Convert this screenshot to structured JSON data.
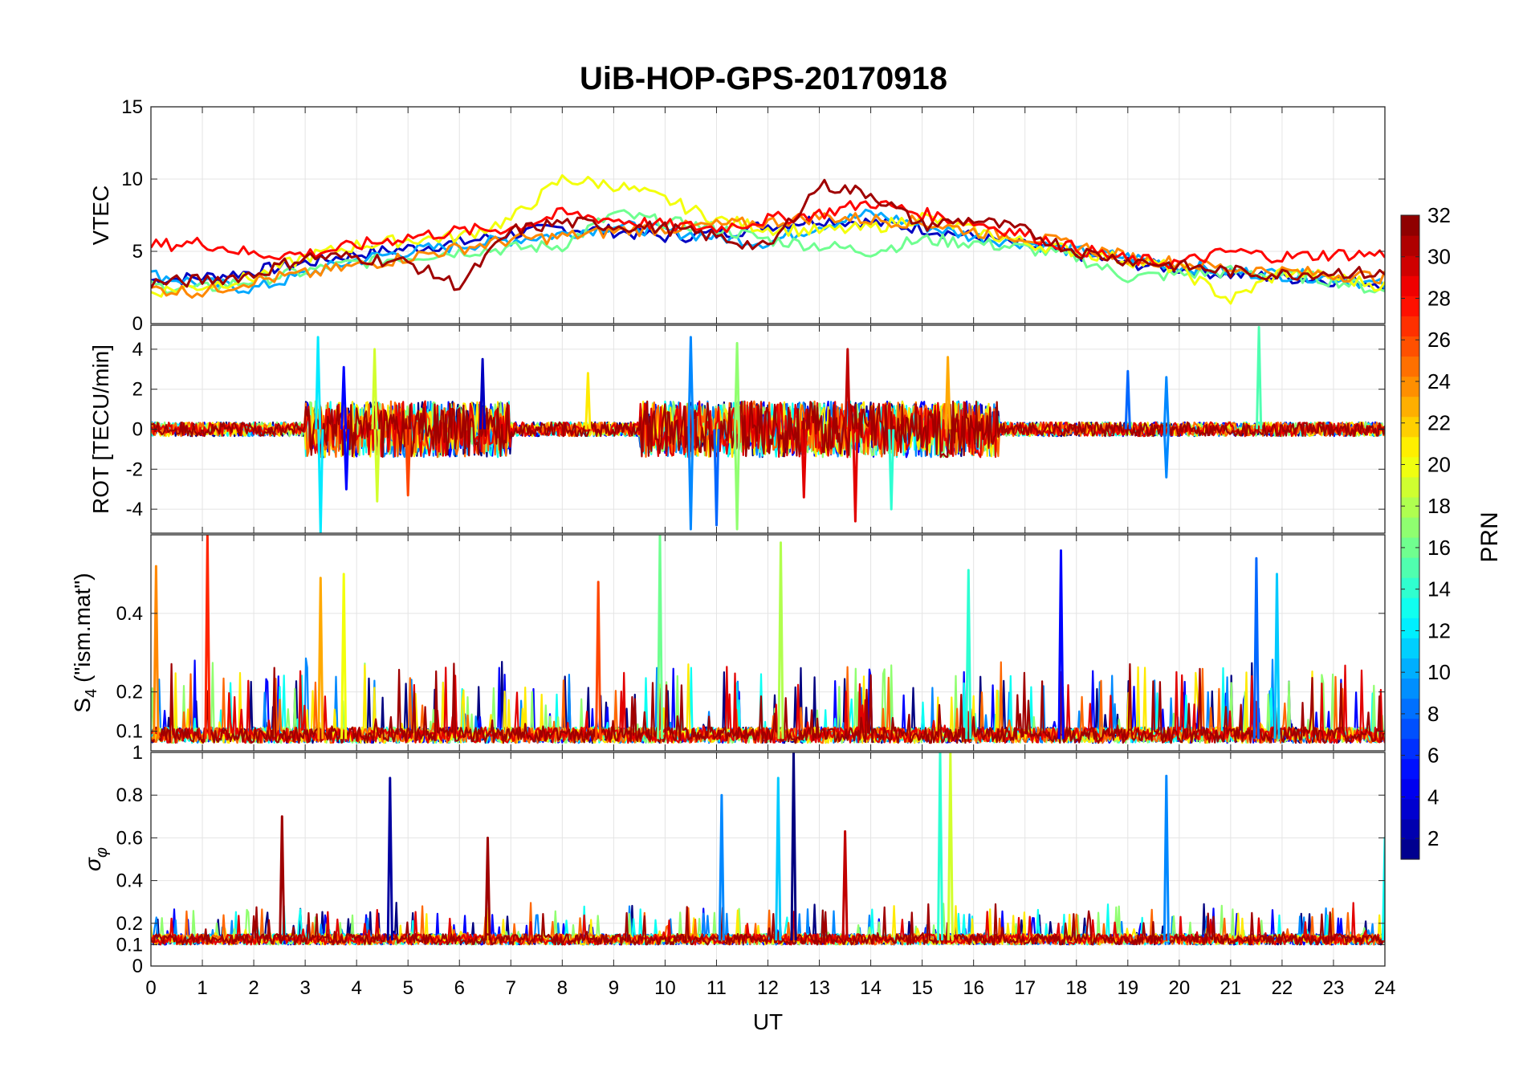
{
  "chart_data": {
    "type": "line",
    "title": "UiB-HOP-GPS-20170918",
    "xlabel": "UT",
    "xlim": [
      0,
      24
    ],
    "x_ticks": [
      0,
      1,
      2,
      3,
      4,
      5,
      6,
      7,
      8,
      9,
      10,
      11,
      12,
      13,
      14,
      15,
      16,
      17,
      18,
      19,
      20,
      21,
      22,
      23,
      24
    ],
    "grid": true,
    "colorbar": {
      "label": "PRN",
      "range": [
        1,
        32
      ],
      "ticks": [
        2,
        4,
        6,
        8,
        10,
        12,
        14,
        16,
        18,
        20,
        22,
        24,
        26,
        28,
        30,
        32
      ],
      "colormap": "jet"
    },
    "panels": [
      {
        "id": "vtec",
        "ylabel": "VTEC",
        "ylim": [
          0,
          15
        ],
        "yticks": [
          0,
          5,
          10,
          15
        ],
        "ytick_labels": [
          "0",
          "5",
          "10",
          "15"
        ],
        "series": [
          {
            "prn": 3,
            "x": [
              0,
              1,
              2,
              3,
              4,
              5,
              6,
              7,
              8,
              9,
              10,
              11,
              12,
              13,
              14,
              15,
              16,
              17,
              18,
              19,
              20,
              21,
              22,
              23,
              24
            ],
            "y": [
              3.0,
              3.2,
              3.6,
              4.2,
              4.8,
              5.2,
              5.6,
              6.2,
              6.6,
              6.4,
              6.0,
              6.2,
              6.8,
              7.2,
              7.0,
              6.6,
              6.0,
              5.4,
              4.8,
              4.2,
              3.8,
              3.4,
              3.2,
              3.0,
              2.8
            ]
          },
          {
            "prn": 10,
            "x": [
              0,
              1,
              2,
              3,
              4,
              5,
              6,
              7,
              8,
              9,
              10,
              11,
              12,
              13,
              14,
              15,
              16,
              17,
              18,
              19,
              20,
              21,
              22,
              23,
              24
            ],
            "y": [
              3.4,
              2.8,
              2.4,
              3.4,
              4.4,
              5.0,
              5.4,
              5.8,
              6.2,
              6.8,
              6.4,
              6.0,
              5.6,
              6.8,
              7.6,
              6.8,
              6.0,
              5.6,
              5.0,
              4.6,
              4.0,
              3.6,
              3.4,
              3.2,
              2.6
            ]
          },
          {
            "prn": 16,
            "x": [
              0,
              1,
              2,
              3,
              4,
              5,
              6,
              7,
              8,
              9,
              10,
              11,
              12,
              13,
              14,
              15,
              16,
              17,
              18,
              19,
              20,
              21,
              22,
              23,
              24
            ],
            "y": [
              2.6,
              2.4,
              3.0,
              3.6,
              4.2,
              4.6,
              5.0,
              5.2,
              5.4,
              7.6,
              7.0,
              6.6,
              5.8,
              5.4,
              5.0,
              5.8,
              5.6,
              5.2,
              4.6,
              3.2,
              3.4,
              3.6,
              3.4,
              3.0,
              2.2
            ]
          },
          {
            "prn": 20,
            "x": [
              0,
              1,
              2,
              3,
              4,
              5,
              6,
              7,
              8,
              9,
              10,
              11,
              12,
              13,
              14,
              15,
              16,
              17,
              18,
              19,
              20,
              21,
              22,
              23,
              24
            ],
            "y": [
              2.2,
              2.6,
              3.2,
              4.6,
              5.4,
              5.8,
              6.0,
              7.2,
              10.0,
              9.6,
              8.6,
              7.2,
              6.6,
              6.4,
              6.6,
              7.4,
              6.4,
              5.6,
              5.0,
              4.4,
              3.8,
              1.6,
              3.6,
              3.2,
              2.6
            ]
          },
          {
            "prn": 24,
            "x": [
              0,
              1,
              2,
              3,
              4,
              5,
              6,
              7,
              8,
              9,
              10,
              11,
              12,
              13,
              14,
              15,
              16,
              17,
              18,
              19,
              20,
              21,
              22,
              23,
              24
            ],
            "y": [
              2.4,
              2.2,
              3.0,
              3.4,
              4.0,
              4.6,
              5.2,
              5.8,
              6.0,
              6.4,
              6.6,
              6.8,
              7.0,
              7.4,
              7.2,
              7.0,
              6.4,
              6.0,
              5.4,
              4.6,
              4.2,
              3.8,
              3.6,
              3.4,
              3.2
            ]
          },
          {
            "prn": 28,
            "x": [
              0,
              1,
              2,
              3,
              4,
              5,
              6,
              7,
              8,
              9,
              10,
              11,
              12,
              13,
              14,
              15,
              16,
              17,
              18,
              19,
              20,
              21,
              22,
              23,
              24
            ],
            "y": [
              5.4,
              5.6,
              4.8,
              4.8,
              5.4,
              6.0,
              6.4,
              6.6,
              7.6,
              7.2,
              6.8,
              6.6,
              7.2,
              7.6,
              8.4,
              7.6,
              7.0,
              6.2,
              5.2,
              4.4,
              4.2,
              5.0,
              4.6,
              4.8,
              4.8
            ]
          },
          {
            "prn": 31,
            "x": [
              0,
              1,
              2,
              3,
              4,
              5,
              6,
              7,
              8,
              9,
              10,
              11,
              12,
              13,
              14,
              15,
              16,
              17,
              18,
              19,
              20,
              21,
              22,
              23,
              24
            ],
            "y": [
              2.8,
              3.0,
              3.4,
              4.6,
              4.6,
              4.2,
              2.6,
              6.4,
              7.0,
              6.8,
              6.6,
              6.0,
              5.2,
              9.6,
              9.0,
              6.8,
              7.2,
              6.4,
              5.0,
              4.4,
              4.0,
              3.6,
              3.4,
              3.6,
              3.4
            ]
          }
        ]
      },
      {
        "id": "rot",
        "ylabel": "ROT [TECU/min]",
        "ylim": [
          -5.2,
          5.2
        ],
        "yticks": [
          -4,
          -2,
          0,
          2,
          4
        ],
        "ytick_labels": [
          "-4",
          "-2",
          "0",
          "2",
          "4"
        ],
        "spikes": [
          {
            "prn": 12,
            "x": 3.25,
            "y": 4.6
          },
          {
            "prn": 12,
            "x": 3.3,
            "y": -5.2
          },
          {
            "prn": 5,
            "x": 3.75,
            "y": 3.1
          },
          {
            "prn": 5,
            "x": 3.8,
            "y": -3.0
          },
          {
            "prn": 19,
            "x": 4.35,
            "y": 4.0
          },
          {
            "prn": 19,
            "x": 4.4,
            "y": -3.6
          },
          {
            "prn": 26,
            "x": 5.0,
            "y": -3.3
          },
          {
            "prn": 3,
            "x": 6.45,
            "y": 3.5
          },
          {
            "prn": 21,
            "x": 8.5,
            "y": 2.8
          },
          {
            "prn": 9,
            "x": 10.5,
            "y": 4.6
          },
          {
            "prn": 9,
            "x": 10.5,
            "y": -5.0
          },
          {
            "prn": 8,
            "x": 11.0,
            "y": -4.8
          },
          {
            "prn": 17,
            "x": 11.4,
            "y": 4.3
          },
          {
            "prn": 17,
            "x": 11.4,
            "y": -5.0
          },
          {
            "prn": 29,
            "x": 12.7,
            "y": -3.4
          },
          {
            "prn": 30,
            "x": 13.55,
            "y": 4.0
          },
          {
            "prn": 29,
            "x": 13.7,
            "y": -4.6
          },
          {
            "prn": 14,
            "x": 14.4,
            "y": -4.0
          },
          {
            "prn": 23,
            "x": 15.5,
            "y": 3.6
          },
          {
            "prn": 8,
            "x": 19.0,
            "y": 2.9
          },
          {
            "prn": 9,
            "x": 19.75,
            "y": 2.6
          },
          {
            "prn": 9,
            "x": 19.75,
            "y": -2.4
          },
          {
            "prn": 15,
            "x": 21.55,
            "y": 5.1
          }
        ]
      },
      {
        "id": "s4",
        "ylabel": "S4 (\"ism.mat\")",
        "ylim": [
          0.05,
          0.6
        ],
        "yticks": [
          0.1,
          0.2,
          0.4
        ],
        "ytick_labels": [
          "0.1",
          "0.2",
          "0.4"
        ],
        "spikes": [
          {
            "prn": 27,
            "x": 1.1,
            "y": 0.6
          },
          {
            "prn": 24,
            "x": 0.1,
            "y": 0.52
          },
          {
            "prn": 23,
            "x": 3.3,
            "y": 0.49
          },
          {
            "prn": 20,
            "x": 3.75,
            "y": 0.5
          },
          {
            "prn": 26,
            "x": 8.7,
            "y": 0.48
          },
          {
            "prn": 16,
            "x": 9.9,
            "y": 0.6
          },
          {
            "prn": 18,
            "x": 12.25,
            "y": 0.58
          },
          {
            "prn": 14,
            "x": 15.9,
            "y": 0.51
          },
          {
            "prn": 5,
            "x": 17.7,
            "y": 0.56
          },
          {
            "prn": 8,
            "x": 21.5,
            "y": 0.54
          },
          {
            "prn": 11,
            "x": 21.9,
            "y": 0.5
          }
        ]
      },
      {
        "id": "sigma_phi",
        "ylabel": "σ_φ",
        "ylim": [
          0,
          1
        ],
        "yticks": [
          0,
          0.1,
          0.2,
          0.4,
          0.6,
          0.8,
          1
        ],
        "ytick_labels": [
          "0",
          "0.1",
          "0.2",
          "0.4",
          "0.6",
          "0.8",
          "1"
        ],
        "spikes": [
          {
            "prn": 31,
            "x": 2.55,
            "y": 0.7
          },
          {
            "prn": 2,
            "x": 4.65,
            "y": 0.88
          },
          {
            "prn": 31,
            "x": 6.55,
            "y": 0.6
          },
          {
            "prn": 9,
            "x": 11.1,
            "y": 0.8
          },
          {
            "prn": 11,
            "x": 12.2,
            "y": 0.88
          },
          {
            "prn": 1,
            "x": 12.5,
            "y": 1.0
          },
          {
            "prn": 30,
            "x": 13.5,
            "y": 0.63
          },
          {
            "prn": 14,
            "x": 15.35,
            "y": 1.0
          },
          {
            "prn": 19,
            "x": 15.55,
            "y": 1.0
          },
          {
            "prn": 9,
            "x": 19.75,
            "y": 0.89
          },
          {
            "prn": 13,
            "x": 24.0,
            "y": 0.6
          }
        ]
      }
    ]
  }
}
